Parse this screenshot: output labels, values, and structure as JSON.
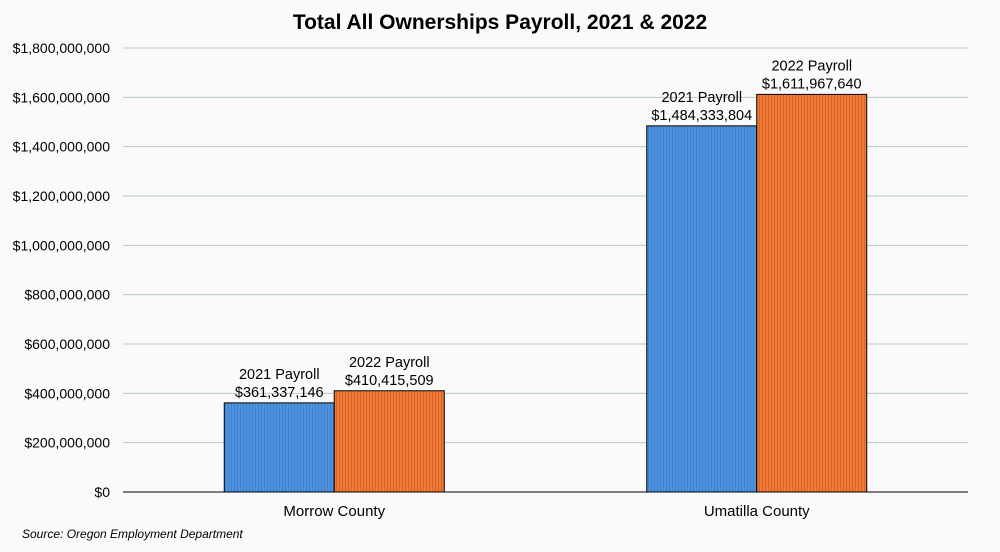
{
  "chart_data": {
    "type": "bar",
    "title": "Total All Ownerships Payroll, 2021 & 2022",
    "categories": [
      "Morrow County",
      "Umatilla County"
    ],
    "series": [
      {
        "name": "2021 Payroll",
        "values": [
          361337146,
          1484333804
        ],
        "labels": [
          "$361,337,146",
          "$1,484,333,804"
        ],
        "color": "#4a90d9"
      },
      {
        "name": "2022 Payroll",
        "values": [
          410415509,
          1611967640
        ],
        "labels": [
          "$410,415,509",
          "$1,611,967,640"
        ],
        "color": "#ed7d31"
      }
    ],
    "ylim": [
      0,
      1800000000
    ],
    "yticks": [
      0,
      200000000,
      400000000,
      600000000,
      800000000,
      1000000000,
      1200000000,
      1400000000,
      1600000000,
      1800000000
    ],
    "ytick_labels": [
      "$0",
      "$200,000,000",
      "$400,000,000",
      "$600,000,000",
      "$800,000,000",
      "$1,000,000,000",
      "$1,200,000,000",
      "$1,400,000,000",
      "$1,600,000,000",
      "$1,800,000,000"
    ],
    "grid": true,
    "source": "Source: Oregon Employment Department"
  }
}
